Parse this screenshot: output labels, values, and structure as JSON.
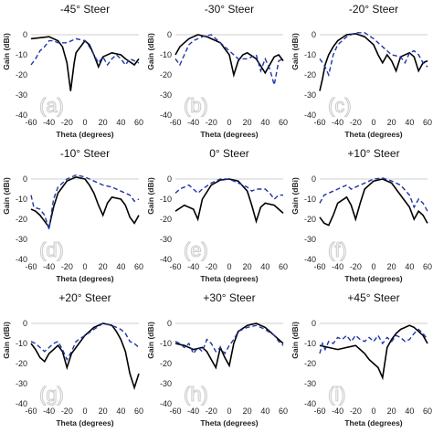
{
  "chart_data": [
    {
      "type": "line",
      "title": "-45° Steer",
      "panel_label": "(a)",
      "xlabel": "Theta (degrees)",
      "ylabel": "Gain (dBi)",
      "xticks": [
        "-60",
        "-40",
        "-20",
        "0",
        "20",
        "40",
        "60"
      ],
      "yticks": [
        "0",
        "-10",
        "-20",
        "-30",
        "-40"
      ],
      "xlim": [
        -60,
        60
      ],
      "ylim": [
        -40,
        5
      ],
      "series": [
        {
          "style": "solid",
          "color": "#000000",
          "x": [
            -60,
            -50,
            -40,
            -30,
            -25,
            -20,
            -16,
            -12,
            -10,
            0,
            5,
            10,
            15,
            20,
            30,
            40,
            45,
            55,
            60
          ],
          "y": [
            -2,
            -1.5,
            -1,
            -3,
            -6,
            -14,
            -28,
            -14,
            -9,
            -3,
            -5,
            -10,
            -16,
            -11,
            -9,
            -10,
            -12,
            -15,
            -12
          ]
        },
        {
          "style": "dashed",
          "color": "#1f35a8",
          "x": [
            -60,
            -55,
            -50,
            -45,
            -40,
            -35,
            -30,
            -20,
            -10,
            0,
            5,
            10,
            15,
            20,
            25,
            30,
            35,
            40,
            45,
            50,
            55,
            60
          ],
          "y": [
            -15,
            -12,
            -8,
            -6,
            -3,
            -3,
            -4,
            -4,
            -2,
            -3,
            -6,
            -10,
            -14,
            -11,
            -15,
            -12,
            -10,
            -12,
            -15,
            -12,
            -13,
            -14
          ]
        }
      ]
    },
    {
      "type": "line",
      "title": "-30° Steer",
      "panel_label": "(b)",
      "xlabel": "Theta (degrees)",
      "ylabel": "Gain (dBi)",
      "xticks": [
        "-60",
        "-40",
        "-20",
        "0",
        "20",
        "40",
        "60"
      ],
      "yticks": [
        "0",
        "-10",
        "-20",
        "-30",
        "-40"
      ],
      "xlim": [
        -60,
        60
      ],
      "ylim": [
        -40,
        5
      ],
      "series": [
        {
          "style": "solid",
          "color": "#000000",
          "x": [
            -60,
            -55,
            -50,
            -45,
            -40,
            -35,
            -30,
            -25,
            -20,
            -10,
            0,
            5,
            10,
            15,
            20,
            30,
            40,
            50,
            55,
            60
          ],
          "y": [
            -10,
            -6,
            -4,
            -2,
            -1,
            0,
            -0.5,
            -1,
            -2,
            -4,
            -10,
            -20,
            -13,
            -10,
            -9,
            -12,
            -19,
            -11,
            -10,
            -13
          ]
        },
        {
          "style": "dashed",
          "color": "#1f35a8",
          "x": [
            -60,
            -55,
            -50,
            -45,
            -40,
            -30,
            -20,
            -10,
            0,
            10,
            20,
            30,
            35,
            40,
            45,
            50,
            55,
            60
          ],
          "y": [
            -12,
            -15,
            -10,
            -5,
            -3,
            -1,
            0,
            -4,
            -8,
            -12,
            -12,
            -10,
            -18,
            -12,
            -17,
            -25,
            -13,
            -12
          ]
        }
      ]
    },
    {
      "type": "line",
      "title": "-20° Steer",
      "panel_label": "(c)",
      "xlabel": "Theta (degrees)",
      "ylabel": "Gain (dBi)",
      "xticks": [
        "-60",
        "-40",
        "-20",
        "0",
        "20",
        "40",
        "60"
      ],
      "yticks": [
        "0",
        "-10",
        "-20",
        "-30",
        "-40"
      ],
      "xlim": [
        -60,
        60
      ],
      "ylim": [
        -40,
        5
      ],
      "series": [
        {
          "style": "solid",
          "color": "#000000",
          "x": [
            -60,
            -57,
            -54,
            -50,
            -45,
            -40,
            -30,
            -20,
            -10,
            0,
            5,
            10,
            15,
            20,
            25,
            30,
            40,
            45,
            50,
            55,
            60
          ],
          "y": [
            -28,
            -22,
            -15,
            -10,
            -6,
            -3,
            0,
            0.5,
            -1,
            -5,
            -10,
            -14,
            -10,
            -13,
            -18,
            -11,
            -9,
            -11,
            -18,
            -14,
            -13
          ]
        },
        {
          "style": "dashed",
          "color": "#1f35a8",
          "x": [
            -60,
            -55,
            -50,
            -45,
            -40,
            -30,
            -20,
            -10,
            0,
            10,
            20,
            30,
            35,
            40,
            45,
            50,
            55,
            60
          ],
          "y": [
            -12,
            -15,
            -20,
            -10,
            -5,
            -1,
            1,
            1,
            -2,
            -6,
            -10,
            -11,
            -14,
            -9,
            -8,
            -10,
            -14,
            -16
          ]
        }
      ]
    },
    {
      "type": "line",
      "title": "-10° Steer",
      "panel_label": "(d)",
      "xlabel": "Theta (degrees)",
      "ylabel": "Gain (dBi)",
      "xticks": [
        "-60",
        "-40",
        "-20",
        "0",
        "20",
        "40",
        "60"
      ],
      "yticks": [
        "0",
        "-10",
        "-20",
        "-30",
        "-40"
      ],
      "xlim": [
        -60,
        60
      ],
      "ylim": [
        -40,
        5
      ],
      "series": [
        {
          "style": "solid",
          "color": "#000000",
          "x": [
            -60,
            -55,
            -50,
            -45,
            -40,
            -35,
            -30,
            -20,
            -10,
            0,
            5,
            10,
            15,
            20,
            25,
            30,
            40,
            45,
            50,
            55,
            60
          ],
          "y": [
            -15,
            -16,
            -18,
            -21,
            -24,
            -14,
            -7,
            -1,
            1,
            0,
            -3,
            -7,
            -13,
            -18,
            -12,
            -9,
            -10,
            -13,
            -19,
            -22,
            -18
          ]
        },
        {
          "style": "dashed",
          "color": "#1f35a8",
          "x": [
            -60,
            -57,
            -50,
            -45,
            -40,
            -35,
            -30,
            -20,
            -10,
            0,
            10,
            20,
            30,
            40,
            50,
            55,
            60
          ],
          "y": [
            -8,
            -14,
            -15,
            -18,
            -25,
            -10,
            -4,
            0,
            2,
            1,
            -1,
            -3,
            -4,
            -6,
            -8,
            -11,
            -10
          ]
        }
      ]
    },
    {
      "type": "line",
      "title": "0° Steer",
      "panel_label": "(e)",
      "xlabel": "Theta (degrees)",
      "ylabel": "Gain (dBi)",
      "xticks": [
        "-60",
        "-40",
        "-20",
        "0",
        "20",
        "40",
        "60"
      ],
      "yticks": [
        "0",
        "-10",
        "-20",
        "-30",
        "-40"
      ],
      "xlim": [
        -60,
        60
      ],
      "ylim": [
        -40,
        5
      ],
      "series": [
        {
          "style": "solid",
          "color": "#000000",
          "x": [
            -60,
            -50,
            -40,
            -35,
            -30,
            -20,
            -10,
            0,
            10,
            20,
            25,
            30,
            35,
            40,
            50,
            60
          ],
          "y": [
            -16,
            -13,
            -15,
            -20,
            -10,
            -3,
            -0.5,
            0,
            -1,
            -6,
            -13,
            -21,
            -14,
            -12,
            -13,
            -17
          ]
        },
        {
          "style": "dashed",
          "color": "#1f35a8",
          "x": [
            -60,
            -55,
            -50,
            -45,
            -40,
            -35,
            -30,
            -20,
            -10,
            0,
            10,
            20,
            25,
            30,
            40,
            45,
            50,
            55,
            60
          ],
          "y": [
            -7,
            -5,
            -4,
            -3,
            -5,
            -7,
            -5,
            -2,
            0,
            0,
            -2,
            -4,
            -6,
            -5,
            -5,
            -7,
            -10,
            -8,
            -8
          ]
        }
      ]
    },
    {
      "type": "line",
      "title": "+10° Steer",
      "panel_label": "(f)",
      "xlabel": "Theta (degrees)",
      "ylabel": "Gain (dBi)",
      "xticks": [
        "-60",
        "-40",
        "-20",
        "0",
        "20",
        "40",
        "60"
      ],
      "yticks": [
        "0",
        "-10",
        "-20",
        "-30",
        "-40"
      ],
      "xlim": [
        -60,
        60
      ],
      "ylim": [
        -40,
        5
      ],
      "series": [
        {
          "style": "solid",
          "color": "#000000",
          "x": [
            -60,
            -55,
            -50,
            -45,
            -40,
            -30,
            -25,
            -20,
            -15,
            -10,
            0,
            10,
            20,
            30,
            40,
            45,
            50,
            55,
            60
          ],
          "y": [
            -19,
            -22,
            -23,
            -18,
            -12,
            -9,
            -13,
            -20,
            -12,
            -5,
            -1,
            0,
            -2,
            -8,
            -14,
            -20,
            -16,
            -18,
            -22
          ]
        },
        {
          "style": "dashed",
          "color": "#1f35a8",
          "x": [
            -60,
            -55,
            -50,
            -45,
            -40,
            -35,
            -30,
            -25,
            -20,
            -10,
            0,
            10,
            20,
            30,
            40,
            45,
            50,
            55,
            60
          ],
          "y": [
            -12,
            -8,
            -7,
            -6,
            -5,
            -4,
            -3,
            -5,
            -4,
            -2,
            0,
            0.5,
            -1,
            -3,
            -8,
            -14,
            -10,
            -12,
            -16
          ]
        }
      ]
    },
    {
      "type": "line",
      "title": "+20° Steer",
      "panel_label": "(g)",
      "xlabel": "Theta (degrees)",
      "ylabel": "Gain (dBi)",
      "xticks": [
        "-60",
        "-40",
        "-20",
        "0",
        "20",
        "40",
        "60"
      ],
      "yticks": [
        "0",
        "-10",
        "-20",
        "-30",
        "-40"
      ],
      "xlim": [
        -60,
        60
      ],
      "ylim": [
        -40,
        5
      ],
      "series": [
        {
          "style": "solid",
          "color": "#000000",
          "x": [
            -60,
            -55,
            -50,
            -45,
            -40,
            -30,
            -25,
            -20,
            -15,
            -10,
            0,
            10,
            20,
            30,
            35,
            40,
            45,
            50,
            55,
            60
          ],
          "y": [
            -10,
            -13,
            -17,
            -19,
            -15,
            -11,
            -14,
            -22,
            -15,
            -12,
            -6,
            -2,
            0,
            -1,
            -4,
            -8,
            -14,
            -25,
            -32,
            -25
          ]
        },
        {
          "style": "dashed",
          "color": "#1f35a8",
          "x": [
            -60,
            -55,
            -50,
            -45,
            -40,
            -35,
            -30,
            -25,
            -20,
            -15,
            -10,
            0,
            10,
            20,
            30,
            40,
            45,
            50,
            55,
            60
          ],
          "y": [
            -9,
            -10,
            -12,
            -14,
            -12,
            -10,
            -9,
            -13,
            -18,
            -14,
            -9,
            -6,
            -3,
            0,
            -1,
            -3,
            -5,
            -9,
            -10,
            -12
          ]
        }
      ]
    },
    {
      "type": "line",
      "title": "+30° Steer",
      "panel_label": "(h)",
      "xlabel": "Theta (degrees)",
      "ylabel": "Gain (dBi)",
      "xticks": [
        "-60",
        "-40",
        "-20",
        "0",
        "20",
        "40",
        "60"
      ],
      "yticks": [
        "0",
        "-10",
        "-20",
        "-30",
        "-40"
      ],
      "xlim": [
        -60,
        60
      ],
      "ylim": [
        -40,
        5
      ],
      "series": [
        {
          "style": "solid",
          "color": "#000000",
          "x": [
            -60,
            -50,
            -40,
            -30,
            -25,
            -20,
            -15,
            -10,
            -5,
            0,
            5,
            10,
            20,
            30,
            40,
            50,
            60
          ],
          "y": [
            -10,
            -11,
            -13,
            -12,
            -14,
            -18,
            -22,
            -12,
            -17,
            -21,
            -10,
            -4,
            -1,
            0,
            -2,
            -6,
            -10
          ]
        },
        {
          "style": "dashed",
          "color": "#1f35a8",
          "x": [
            -60,
            -55,
            -50,
            -45,
            -40,
            -35,
            -30,
            -25,
            -20,
            -15,
            -10,
            -5,
            0,
            5,
            10,
            20,
            30,
            40,
            50,
            55,
            60
          ],
          "y": [
            -9,
            -10,
            -12,
            -10,
            -15,
            -12,
            -14,
            -8,
            -10,
            -14,
            -12,
            -15,
            -11,
            -8,
            -4,
            -2,
            -1,
            -3,
            -6,
            -9,
            -11
          ]
        }
      ]
    },
    {
      "type": "line",
      "title": "+45° Steer",
      "panel_label": "(i)",
      "xlabel": "Theta (degrees)",
      "ylabel": "Gain (dBi)",
      "xticks": [
        "-60",
        "-40",
        "-20",
        "0",
        "20",
        "40",
        "60"
      ],
      "yticks": [
        "0",
        "-10",
        "-20",
        "-30",
        "-40"
      ],
      "xlim": [
        -60,
        60
      ],
      "ylim": [
        -40,
        5
      ],
      "series": [
        {
          "style": "solid",
          "color": "#000000",
          "x": [
            -60,
            -50,
            -40,
            -30,
            -20,
            -15,
            -10,
            -5,
            0,
            5,
            10,
            15,
            20,
            25,
            30,
            40,
            45,
            50,
            55,
            60
          ],
          "y": [
            -11,
            -12,
            -13,
            -12,
            -11,
            -13,
            -15,
            -18,
            -20,
            -22,
            -27,
            -12,
            -8,
            -5,
            -3,
            -1,
            -2,
            -4,
            -6,
            -10
          ]
        },
        {
          "style": "dashed",
          "color": "#1f35a8",
          "x": [
            -60,
            -57,
            -54,
            -50,
            -45,
            -40,
            -35,
            -30,
            -25,
            -20,
            -15,
            -10,
            -5,
            0,
            5,
            10,
            15,
            20,
            25,
            30,
            35,
            40,
            45,
            50,
            55,
            60
          ],
          "y": [
            -15,
            -10,
            -13,
            -9,
            -10,
            -7,
            -8,
            -6,
            -9,
            -6,
            -8,
            -9,
            -7,
            -9,
            -6,
            -10,
            -7,
            -9,
            -6,
            -7,
            -9,
            -8,
            -5,
            -3,
            -5,
            -8
          ]
        }
      ]
    }
  ]
}
